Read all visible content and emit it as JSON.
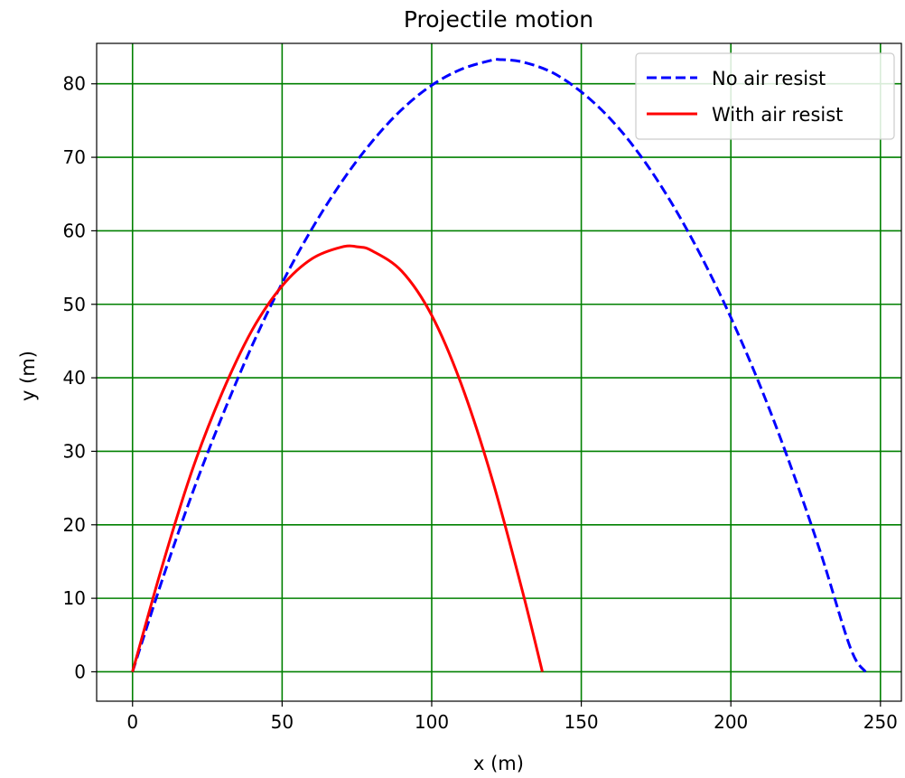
{
  "chart_data": {
    "type": "line",
    "title": "Projectile motion",
    "xlabel": "x (m)",
    "ylabel": "y (m)",
    "xlim": [
      -12,
      257
    ],
    "ylim": [
      -4,
      85.5
    ],
    "xticks": [
      0,
      50,
      100,
      150,
      200,
      250
    ],
    "yticks": [
      0,
      10,
      20,
      30,
      40,
      50,
      60,
      70,
      80
    ],
    "xtick_labels": [
      "0",
      "50",
      "100",
      "150",
      "200",
      "250"
    ],
    "ytick_labels": [
      "0",
      "10",
      "20",
      "30",
      "40",
      "50",
      "60",
      "70",
      "80"
    ],
    "grid": true,
    "grid_color": "#008000",
    "legend_position": "top-right",
    "series": [
      {
        "name": "No air resist",
        "color": "#0000ff",
        "style": "dashed",
        "x": [
          0,
          10,
          20,
          30,
          40,
          50,
          60,
          70,
          80,
          90,
          100,
          110,
          120,
          122.5,
          130,
          140,
          150,
          160,
          170,
          180,
          190,
          200,
          210,
          220,
          230,
          240,
          245
        ],
        "y": [
          0,
          12.6,
          24.3,
          34.8,
          44.4,
          52.9,
          60.3,
          66.7,
          72.1,
          76.5,
          79.8,
          82.0,
          83.2,
          83.3,
          83.0,
          81.6,
          78.9,
          75.1,
          70.1,
          63.9,
          56.6,
          48.2,
          38.7,
          28.0,
          16.2,
          3.2,
          0
        ]
      },
      {
        "name": "With air resist",
        "color": "#ff0000",
        "style": "solid",
        "x": [
          0,
          10,
          20,
          30,
          40,
          50,
          60,
          70,
          75.5,
          80,
          90,
          100,
          110,
          120,
          130,
          137
        ],
        "y": [
          0,
          14.5,
          27.5,
          38.0,
          46.5,
          52.5,
          56.2,
          57.8,
          57.8,
          57.3,
          54.5,
          48.5,
          39.0,
          26.5,
          11.5,
          0
        ]
      }
    ]
  }
}
